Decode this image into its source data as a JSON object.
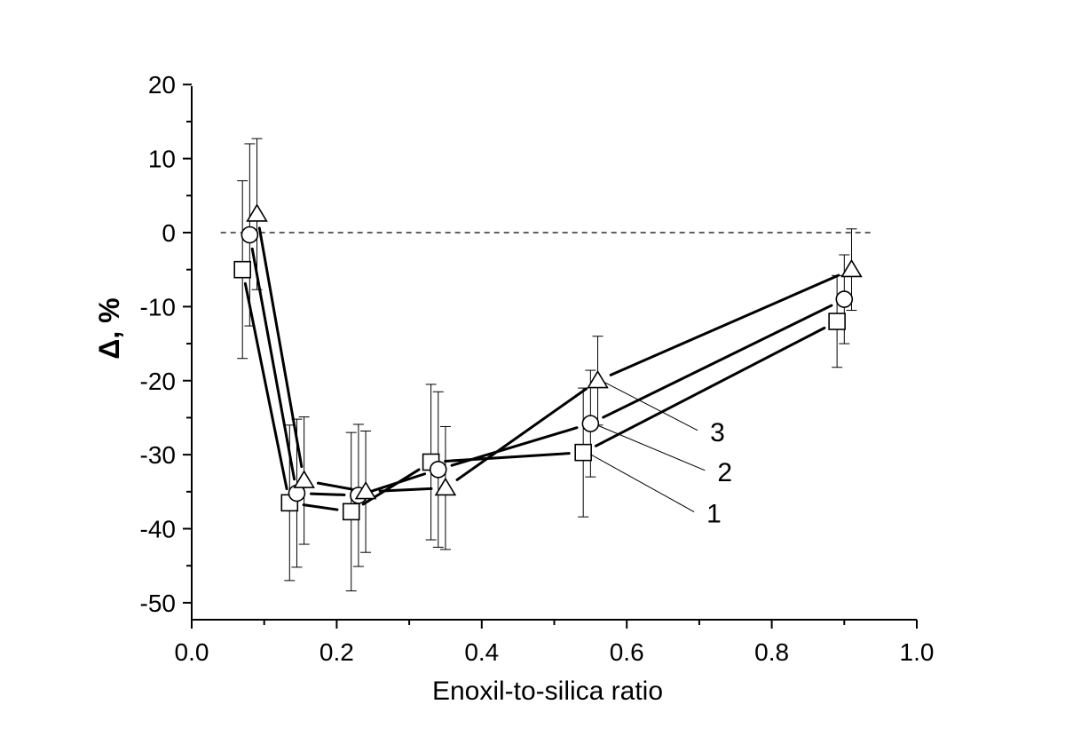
{
  "chart_data": {
    "type": "scatter",
    "title": "",
    "xlabel": "Enoxil-to-silica ratio",
    "ylabel": "Δ, %",
    "xlim": [
      0.0,
      1.0
    ],
    "ylim": [
      -52,
      20
    ],
    "xticks": [
      "0.0",
      "0.2",
      "0.4",
      "0.6",
      "0.8",
      "1.0"
    ],
    "xtick_values": [
      0.0,
      0.2,
      0.4,
      0.6,
      0.8,
      1.0
    ],
    "yticks": [
      "20",
      "10",
      "0",
      "-10",
      "-20",
      "-30",
      "-40",
      "-50"
    ],
    "ytick_values": [
      20,
      10,
      0,
      -10,
      -20,
      -30,
      -40,
      -50
    ],
    "reference_line": {
      "y": 0,
      "x_range": [
        0.04,
        0.94
      ],
      "style": "dashed"
    },
    "series": [
      {
        "name": "1",
        "marker": "square",
        "x": [
          0.07,
          0.135,
          0.22,
          0.33,
          0.54,
          0.89
        ],
        "y": [
          -5,
          -36.5,
          -37.7,
          -31,
          -29.7,
          -12
        ],
        "err": [
          12,
          10.5,
          10.7,
          10.5,
          8.7,
          6.2
        ]
      },
      {
        "name": "2",
        "marker": "circle",
        "x": [
          0.08,
          0.145,
          0.23,
          0.34,
          0.55,
          0.9
        ],
        "y": [
          -0.3,
          -35.2,
          -35.5,
          -32,
          -25.8,
          -9
        ],
        "err": [
          12.3,
          10,
          9.6,
          10.5,
          7.2,
          6
        ]
      },
      {
        "name": "3",
        "marker": "triangle",
        "x": [
          0.09,
          0.155,
          0.24,
          0.35,
          0.56,
          0.91
        ],
        "y": [
          2.5,
          -33.5,
          -35,
          -34.5,
          -20,
          -5
        ],
        "err": [
          10.2,
          8.6,
          8.2,
          8.3,
          6,
          5.5
        ]
      }
    ],
    "annotations": [
      {
        "text": "1",
        "series": "1",
        "point_index": 4,
        "label_x": 0.71,
        "label_y": -38.2
      },
      {
        "text": "2",
        "series": "2",
        "point_index": 4,
        "label_x": 0.725,
        "label_y": -32.6
      },
      {
        "text": "3",
        "series": "3",
        "point_index": 4,
        "label_x": 0.715,
        "label_y": -27.2
      }
    ]
  }
}
